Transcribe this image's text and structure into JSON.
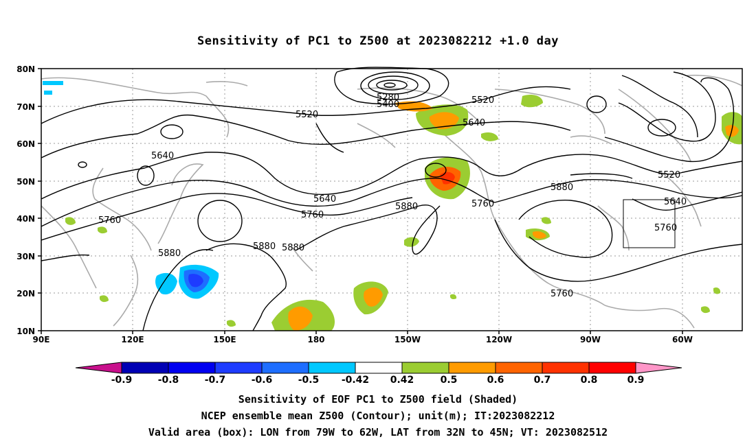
{
  "title": "Sensitivity of PC1 to Z500 at 2023082212 +1.0 day",
  "map": {
    "lon_labels": [
      "90E",
      "120E",
      "150E",
      "180",
      "150W",
      "120W",
      "90W",
      "60W"
    ],
    "lat_labels": [
      "80N",
      "70N",
      "60N",
      "50N",
      "40N",
      "30N",
      "20N",
      "10N"
    ],
    "contour_labels": [
      "5280",
      "5400",
      "5520",
      "5520",
      "5520",
      "5640",
      "5640",
      "5640",
      "5640",
      "5760",
      "5760",
      "5760",
      "5760",
      "5880",
      "5880",
      "5880",
      "5880",
      "5880",
      "5760"
    ],
    "valid_box": {
      "lon": [
        "79W",
        "62W"
      ],
      "lat": [
        "32N",
        "45N"
      ]
    }
  },
  "colorbar": {
    "ticks": [
      "-0.9",
      "-0.8",
      "-0.7",
      "-0.6",
      "-0.5",
      "-0.42",
      "0.42",
      "0.5",
      "0.6",
      "0.7",
      "0.8",
      "0.9"
    ],
    "colors": [
      "#c8108c",
      "#0000b4",
      "#0000f0",
      "#1e3cff",
      "#1e6eff",
      "#00c8ff",
      "#ffffff",
      "#9bcd32",
      "#ff9b00",
      "#ff6400",
      "#ff3200",
      "#ff0000",
      "#ff96c8"
    ]
  },
  "captions": [
    "Sensitivity of EOF PC1 to Z500 field (Shaded)",
    "NCEP ensemble mean Z500 (Contour); unit(m); IT:2023082212",
    "Valid area (box): LON from 79W to 62W, LAT from 32N to 45N; VT: 2023082512"
  ]
}
